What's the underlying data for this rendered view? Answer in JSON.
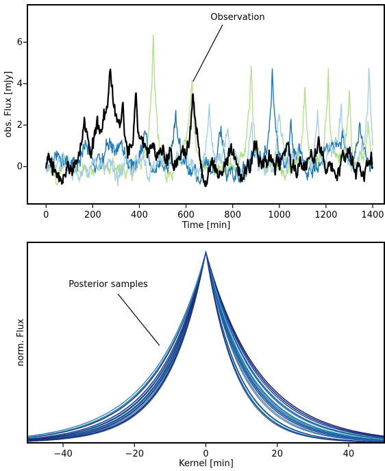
{
  "chart_data": [
    {
      "type": "line",
      "xlabel": "Time [min]",
      "ylabel": "obs. Flux [mJy]",
      "xlim": [
        -80,
        1450
      ],
      "ylim": [
        -1.8,
        7.8
      ],
      "xticks": [
        0,
        200,
        400,
        600,
        800,
        1000,
        1200,
        1400
      ],
      "yticks": [
        0,
        2,
        4,
        6
      ],
      "grid": false,
      "annotations": [
        {
          "text": "Observation",
          "x": 630,
          "y": 4.1
        }
      ],
      "series": [
        {
          "role": "light-green",
          "color": "#b2df8a",
          "peaks": [
            [
              460,
              6.5,
              14
            ],
            [
              625,
              4.3,
              14
            ],
            [
              880,
              5.2,
              12
            ],
            [
              1110,
              4.2,
              12
            ],
            [
              1210,
              4.3,
              12
            ],
            [
              1300,
              3.8,
              12
            ],
            [
              1380,
              2.5,
              12
            ]
          ]
        },
        {
          "role": "dark-blue",
          "color": "#1f78b4",
          "peaks": [
            [
              160,
              0.9,
              20
            ],
            [
              280,
              1.3,
              20
            ],
            [
              430,
              2.0,
              15
            ],
            [
              555,
              2.8,
              15
            ],
            [
              750,
              2.0,
              15
            ],
            [
              970,
              4.3,
              14
            ],
            [
              1050,
              2.2,
              14
            ],
            [
              1270,
              1.5,
              15
            ],
            [
              1345,
              1.2,
              15
            ]
          ]
        },
        {
          "role": "light-blue",
          "color": "#a6cee3",
          "peaks": [
            [
              700,
              2.6,
              14
            ],
            [
              780,
              1.6,
              14
            ],
            [
              880,
              2.0,
              14
            ],
            [
              1000,
              2.3,
              14
            ],
            [
              1165,
              2.5,
              14
            ],
            [
              1265,
              3.0,
              14
            ],
            [
              1385,
              5.5,
              10
            ]
          ]
        },
        {
          "role": "observation",
          "color": "#000000",
          "peaks": [
            [
              165,
              2.2,
              16
            ],
            [
              220,
              1.4,
              14
            ],
            [
              275,
              4.6,
              22
            ],
            [
              330,
              3.0,
              16
            ],
            [
              385,
              3.2,
              12
            ],
            [
              455,
              1.2,
              14
            ],
            [
              630,
              3.8,
              16
            ],
            [
              780,
              0.8,
              20
            ],
            [
              900,
              1.5,
              20
            ],
            [
              1025,
              1.0,
              20
            ],
            [
              1170,
              0.9,
              20
            ],
            [
              1300,
              0.8,
              20
            ]
          ]
        }
      ]
    },
    {
      "type": "line",
      "xlabel": "Kernel [min]",
      "ylabel": "norm. Flux",
      "xlim": [
        -50,
        50
      ],
      "ylim": [
        0.0,
        1.05
      ],
      "xticks": [
        -40,
        -20,
        0,
        20,
        40
      ],
      "grid": false,
      "annotations": [
        {
          "text": "Posterior samples",
          "x": -13,
          "y": 0.51
        }
      ],
      "series_count": 28,
      "colors": [
        "#1b1e5e",
        "#1f2a78",
        "#253494",
        "#1d4f9e",
        "#2166ac",
        "#225ea8",
        "#1d91c0",
        "#41b6c4"
      ],
      "left_scale_range": [
        10,
        15
      ],
      "right_scale_range": [
        8,
        15
      ]
    }
  ]
}
